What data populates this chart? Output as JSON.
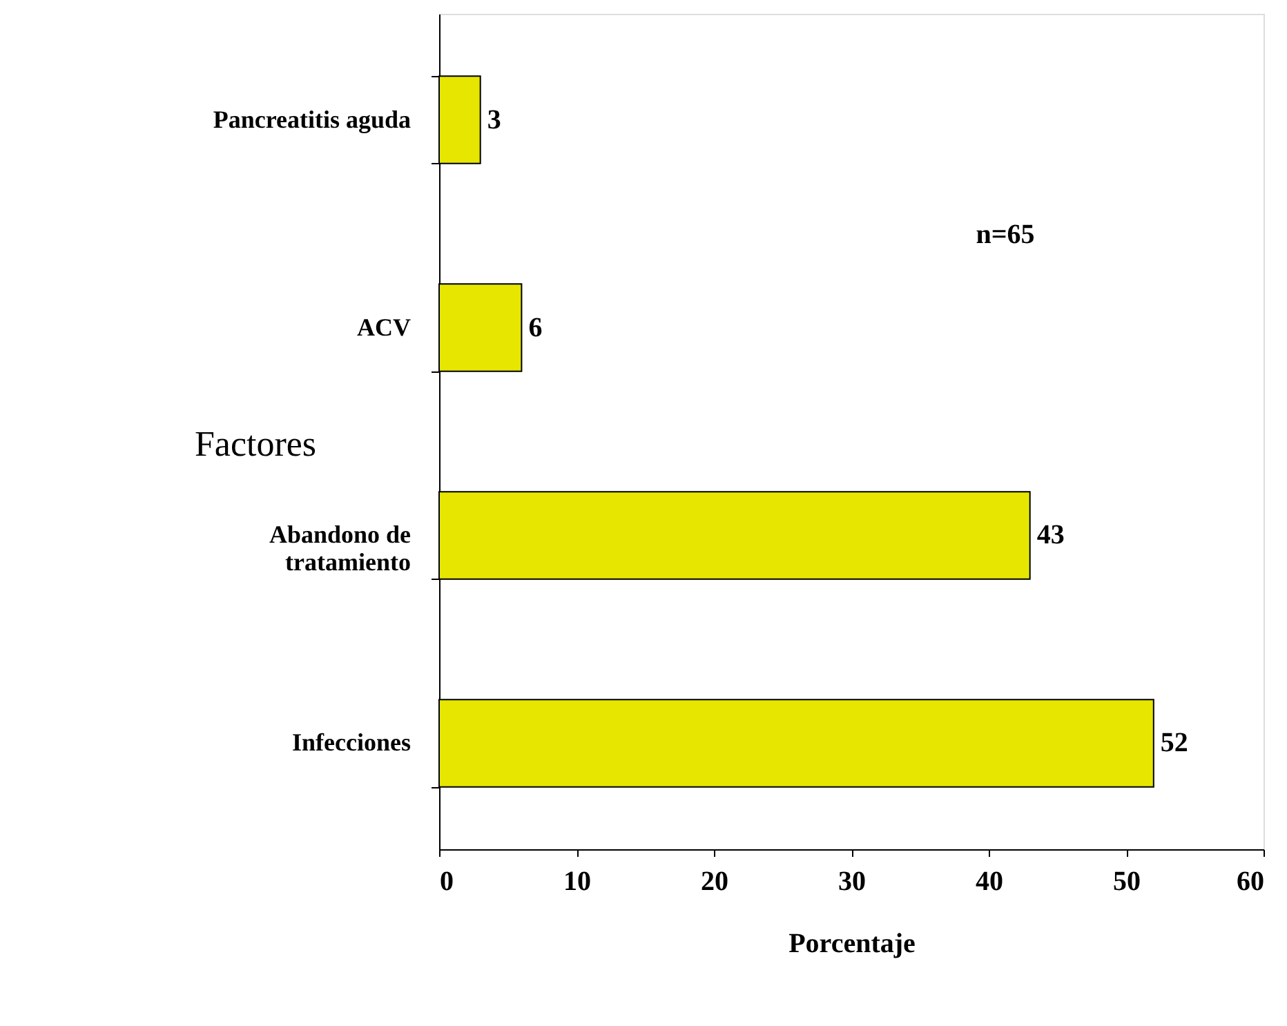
{
  "chart_data": {
    "type": "bar",
    "orientation": "horizontal",
    "categories": [
      "Pancreatitis aguda",
      "ACV",
      "Abandono de tratamiento",
      "Infecciones"
    ],
    "values": [
      3,
      6,
      43,
      52
    ],
    "color": "#e6e600",
    "xlim": [
      0,
      60
    ],
    "xticks": [
      0,
      10,
      20,
      30,
      40,
      50,
      60
    ],
    "xlabel": "Porcentaje",
    "ylabel": "Factores",
    "annotations": [
      "n=65"
    ],
    "data_labels": true,
    "grid": false
  }
}
